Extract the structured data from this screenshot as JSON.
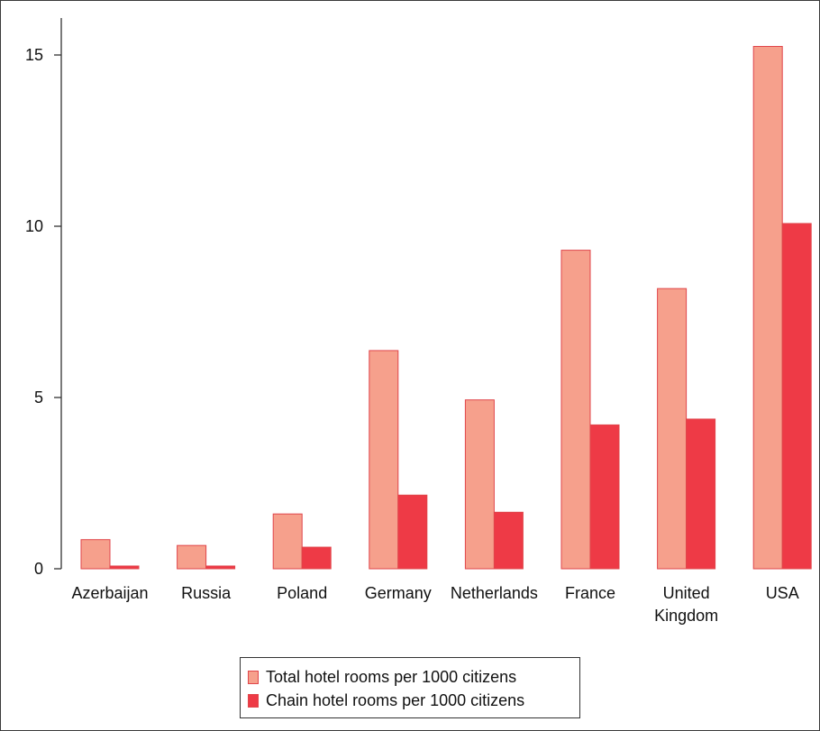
{
  "colors": {
    "total": "#f6a08c",
    "total_edge": "#e0454a",
    "chain": "#ee3a46",
    "axis": "#333333"
  },
  "chart_data": {
    "type": "bar",
    "categories": [
      "Azerbaijan",
      "Russia",
      "Poland",
      "Germany",
      "Netherlands",
      "France",
      "United Kingdom",
      "USA"
    ],
    "category_lines": [
      [
        "Azerbaijan"
      ],
      [
        "Russia"
      ],
      [
        "Poland"
      ],
      [
        "Germany"
      ],
      [
        "Netherlands"
      ],
      [
        "France"
      ],
      [
        "United",
        "Kingdom"
      ],
      [
        "USA"
      ]
    ],
    "series": [
      {
        "name": "Total hotel rooms per 1000 citizens",
        "values": [
          0.85,
          0.68,
          1.6,
          6.37,
          4.93,
          9.3,
          8.18,
          15.25
        ]
      },
      {
        "name": "Chain hotel rooms per 1000 citizens",
        "values": [
          0.08,
          0.08,
          0.63,
          2.15,
          1.65,
          4.2,
          4.37,
          10.08
        ]
      }
    ],
    "yticks": [
      0,
      5,
      10,
      15
    ],
    "ylim": [
      0,
      16.2
    ],
    "grid": false,
    "legend_position": "bottom-center"
  }
}
